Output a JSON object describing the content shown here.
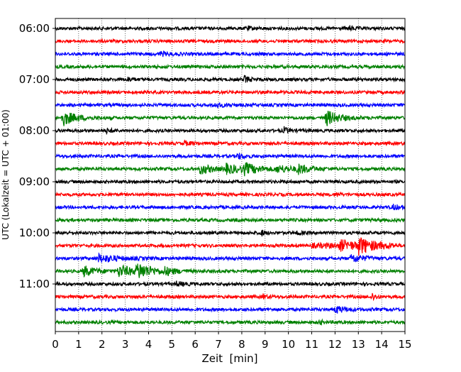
{
  "chart_data": {
    "type": "line",
    "title": "",
    "xlabel": "Zeit  [min]",
    "ylabel": "UTC (Lokalzeit = UTC + 01:00)",
    "xlim": [
      0,
      15
    ],
    "xticks": [
      "0",
      "1",
      "2",
      "3",
      "4",
      "5",
      "6",
      "7",
      "8",
      "9",
      "10",
      "11",
      "12",
      "13",
      "14",
      "15"
    ],
    "yticks": [
      {
        "label": "06:00",
        "trace": 0
      },
      {
        "label": "07:00",
        "trace": 4
      },
      {
        "label": "08:00",
        "trace": 8
      },
      {
        "label": "09:00",
        "trace": 12
      },
      {
        "label": "10:00",
        "trace": 16
      },
      {
        "label": "11:00",
        "trace": 20
      }
    ],
    "grid": "vertical-dotted",
    "trace_minutes": 15,
    "trace_count": 24,
    "colors": [
      "#000000",
      "#ff0000",
      "#0000ff",
      "#008000"
    ],
    "noise_amplitude": 2.2,
    "events": [
      {
        "trace": 0,
        "t": 8.2,
        "amp": 1.5,
        "dur": 0.2
      },
      {
        "trace": 0,
        "t": 12.6,
        "amp": 1.5,
        "dur": 0.2
      },
      {
        "trace": 2,
        "t": 4.5,
        "amp": 1.3,
        "dur": 0.4
      },
      {
        "trace": 4,
        "t": 8.1,
        "amp": 2.5,
        "dur": 0.2
      },
      {
        "trace": 4,
        "t": 3.1,
        "amp": 1.4,
        "dur": 0.2
      },
      {
        "trace": 6,
        "t": 6.8,
        "amp": 1.4,
        "dur": 0.4
      },
      {
        "trace": 7,
        "t": 0.3,
        "amp": 5.5,
        "dur": 0.5
      },
      {
        "trace": 7,
        "t": 11.6,
        "amp": 5.5,
        "dur": 0.5
      },
      {
        "trace": 8,
        "t": 9.8,
        "amp": 2.2,
        "dur": 0.2
      },
      {
        "trace": 8,
        "t": 2.2,
        "amp": 1.4,
        "dur": 0.2
      },
      {
        "trace": 9,
        "t": 5.5,
        "amp": 1.4,
        "dur": 0.3
      },
      {
        "trace": 10,
        "t": 7.8,
        "amp": 2.0,
        "dur": 0.3
      },
      {
        "trace": 11,
        "t": 6.2,
        "amp": 3.5,
        "dur": 0.5
      },
      {
        "trace": 11,
        "t": 7.3,
        "amp": 3.0,
        "dur": 0.8
      },
      {
        "trace": 11,
        "t": 8.1,
        "amp": 3.0,
        "dur": 0.6
      },
      {
        "trace": 11,
        "t": 9.5,
        "amp": 2.0,
        "dur": 0.8
      },
      {
        "trace": 11,
        "t": 10.4,
        "amp": 3.0,
        "dur": 0.4
      },
      {
        "trace": 13,
        "t": 12.0,
        "amp": 1.4,
        "dur": 0.2
      },
      {
        "trace": 14,
        "t": 14.5,
        "amp": 1.6,
        "dur": 0.3
      },
      {
        "trace": 16,
        "t": 8.8,
        "amp": 2.5,
        "dur": 0.15
      },
      {
        "trace": 16,
        "t": 10.4,
        "amp": 1.5,
        "dur": 0.15
      },
      {
        "trace": 17,
        "t": 11.0,
        "amp": 1.8,
        "dur": 3.5
      },
      {
        "trace": 17,
        "t": 12.2,
        "amp": 3.0,
        "dur": 0.6
      },
      {
        "trace": 17,
        "t": 13.0,
        "amp": 5.0,
        "dur": 0.5
      },
      {
        "trace": 18,
        "t": 1.8,
        "amp": 2.8,
        "dur": 0.8
      },
      {
        "trace": 18,
        "t": 12.7,
        "amp": 2.8,
        "dur": 0.5
      },
      {
        "trace": 19,
        "t": 1.2,
        "amp": 3.5,
        "dur": 0.5
      },
      {
        "trace": 19,
        "t": 2.7,
        "amp": 4.0,
        "dur": 0.7
      },
      {
        "trace": 19,
        "t": 3.5,
        "amp": 5.0,
        "dur": 0.6
      },
      {
        "trace": 19,
        "t": 4.7,
        "amp": 2.0,
        "dur": 0.4
      },
      {
        "trace": 20,
        "t": 5.2,
        "amp": 1.4,
        "dur": 0.3
      },
      {
        "trace": 21,
        "t": 8.9,
        "amp": 1.5,
        "dur": 0.15
      },
      {
        "trace": 21,
        "t": 13.6,
        "amp": 2.5,
        "dur": 0.15
      },
      {
        "trace": 22,
        "t": 12.0,
        "amp": 2.5,
        "dur": 0.4
      },
      {
        "trace": 23,
        "t": 11.3,
        "amp": 1.4,
        "dur": 0.2
      }
    ]
  }
}
